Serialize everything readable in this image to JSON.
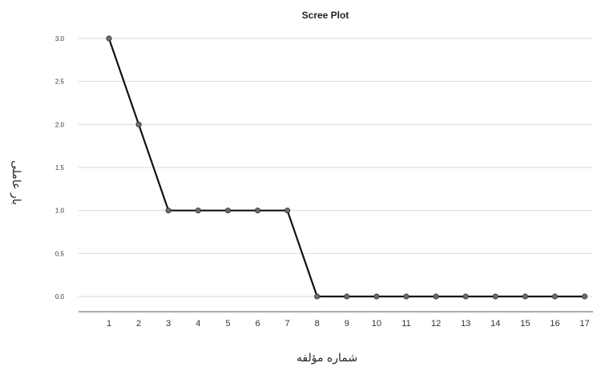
{
  "chart_data": {
    "type": "line",
    "title": "Scree Plot",
    "xlabel": "شماره مؤلفه",
    "ylabel": "بار عاملی",
    "x": [
      1,
      2,
      3,
      4,
      5,
      6,
      7,
      8,
      9,
      10,
      11,
      12,
      13,
      14,
      15,
      16,
      17
    ],
    "series": [
      {
        "values": [
          3.0,
          2.0,
          1.0,
          1.0,
          1.0,
          1.0,
          1.0,
          0.0,
          0.0,
          0.0,
          0.0,
          0.0,
          0.0,
          0.0,
          0.0,
          0.0,
          0.0
        ]
      }
    ],
    "ylim": [
      0.0,
      3.0
    ],
    "yticks": [
      "0.0",
      "0.5",
      "1.0",
      "1.5",
      "2.0",
      "2.5",
      "3.0"
    ],
    "grid": "horizontal",
    "line_color": "#111111",
    "marker_color": "#6b6b6b",
    "grid_color": "#d9d9d9"
  }
}
